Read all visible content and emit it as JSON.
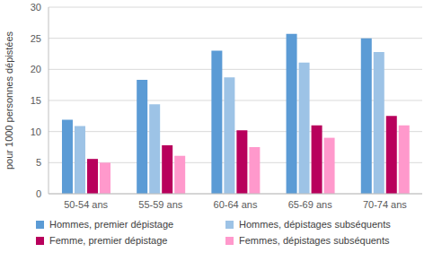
{
  "chart_data": {
    "type": "bar",
    "y_label": "pour 1000 personnes dépistées",
    "categories": [
      "50-54 ans",
      "55-59 ans",
      "60-64 ans",
      "65-69 ans",
      "70-74 ans"
    ],
    "series": [
      {
        "name": "Hommes, premier dépistage",
        "color": "#5b9bd5",
        "values": [
          11.9,
          18.3,
          23.0,
          25.7,
          25.0
        ]
      },
      {
        "name": "Hommes, dépistages subséquents",
        "color": "#9dc3e6",
        "values": [
          10.9,
          14.4,
          18.7,
          21.1,
          22.8
        ]
      },
      {
        "name": "Femme, premier dépistage",
        "color": "#b8005c",
        "values": [
          5.6,
          7.8,
          10.2,
          11.0,
          12.5
        ]
      },
      {
        "name": "Femmes, dépistages subséquents",
        "color": "#ff99cc",
        "values": [
          5.0,
          6.1,
          7.5,
          9.0,
          11.0
        ]
      }
    ],
    "ylim": [
      0,
      30
    ],
    "yticks": [
      0,
      5,
      10,
      15,
      20,
      25,
      30
    ],
    "grid": true,
    "legend": "bottom"
  }
}
